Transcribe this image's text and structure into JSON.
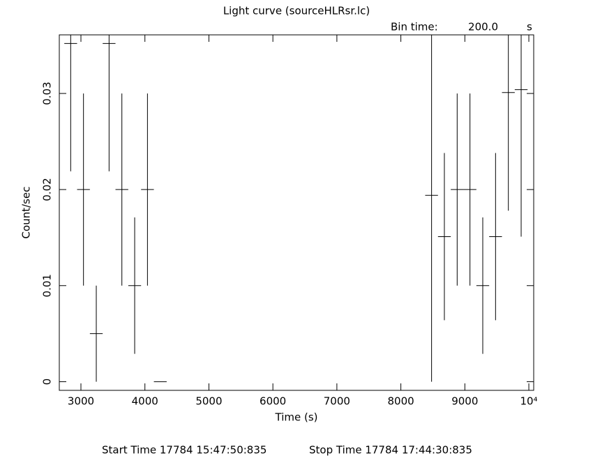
{
  "chart_data": {
    "type": "scatter",
    "title": "Light curve (sourceHLRsr.lc)",
    "bin_time_label": "Bin time:",
    "bin_time": "200.0",
    "bin_time_unit": "s",
    "x_label": "Time (s)",
    "y_label": "Count/sec",
    "start_time": "Start Time 17784  15:47:50:835",
    "stop_time": "Stop Time 17784  17:44:30:835",
    "color": "#000000",
    "x": [
      2840,
      3040,
      3240,
      3440,
      3640,
      3840,
      4040,
      4240,
      8480,
      8680,
      8880,
      9080,
      9280,
      9480,
      9680,
      9880
    ],
    "xerr": [
      100,
      100,
      100,
      100,
      100,
      100,
      100,
      100,
      100,
      100,
      100,
      100,
      100,
      100,
      100,
      100
    ],
    "values": [
      0.0352,
      0.02,
      0.005,
      0.0352,
      0.02,
      0.01,
      0.02,
      0,
      0.0194,
      0.0151,
      0.02,
      0.02,
      0.01,
      0.0151,
      0.0301,
      0.0304
    ],
    "yerr": [
      0.0133,
      0.01,
      0.005,
      0.0133,
      0.01,
      0.0071,
      0.01,
      0,
      0.0194,
      0.0087,
      0.01,
      0.01,
      0.0071,
      0.0087,
      0.0123,
      0.0153
    ],
    "xlim": [
      2662,
      10076
    ],
    "ylim": [
      -0.0009,
      0.0361
    ],
    "xticks": [
      3000,
      4000,
      5000,
      6000,
      7000,
      8000,
      9000,
      {
        "value": 10000,
        "label": "10⁴"
      }
    ],
    "yticks": [
      0,
      0.01,
      0.02,
      0.03
    ]
  }
}
